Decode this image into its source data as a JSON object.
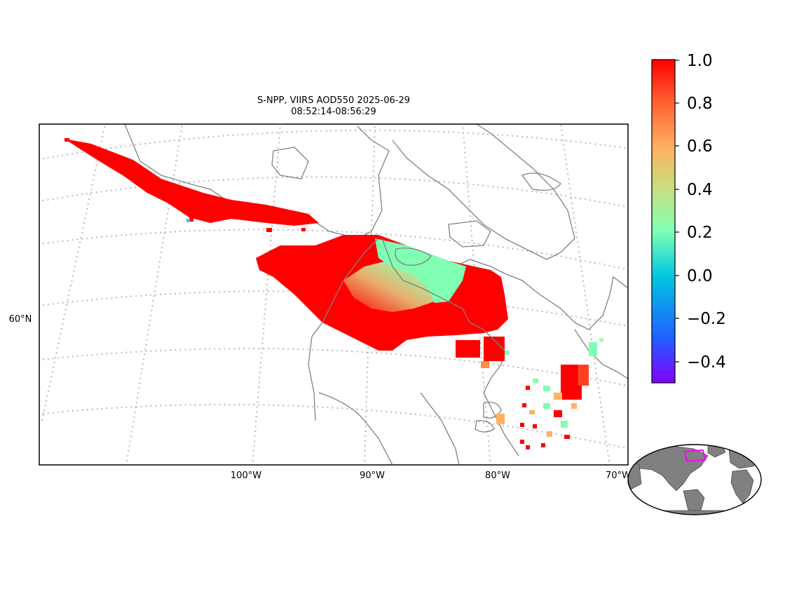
{
  "title": {
    "line1": "S-NPP, VIIRS AOD550 2025-06-29",
    "line2": "08:52:14-08:56:29"
  },
  "map": {
    "longitude_labels": [
      "100°W",
      "90°W",
      "80°W",
      "70°W"
    ],
    "latitude_labels": [
      "60°N"
    ],
    "graticule": "dotted grey",
    "coastline_color": "#808080",
    "colormap": "rainbow",
    "aod_regions": [
      {
        "name": "northwest plume",
        "aod": 1.0
      },
      {
        "name": "hudson bay swath",
        "aod": 1.0
      },
      {
        "name": "hudson bay swath interior",
        "aod": 0.55
      },
      {
        "name": "northeast swath edge",
        "aod": 0.3
      },
      {
        "name": "great lakes scatter",
        "aod": 0.9
      },
      {
        "name": "east coast scatter",
        "aod": 0.3
      }
    ]
  },
  "colorbar": {
    "ticks": [
      "1.0",
      "0.8",
      "0.6",
      "0.4",
      "0.2",
      "0.0",
      "−0.2",
      "−0.4"
    ],
    "min": -0.5,
    "max": 1.0,
    "colors": [
      "#8000ff",
      "#0080ff",
      "#00c8e0",
      "#80ffb4",
      "#c8e080",
      "#ffb060",
      "#ff6030",
      "#ff0000"
    ]
  },
  "inset": {
    "land_color": "#808080",
    "highlight_color": "#ff00ff"
  }
}
